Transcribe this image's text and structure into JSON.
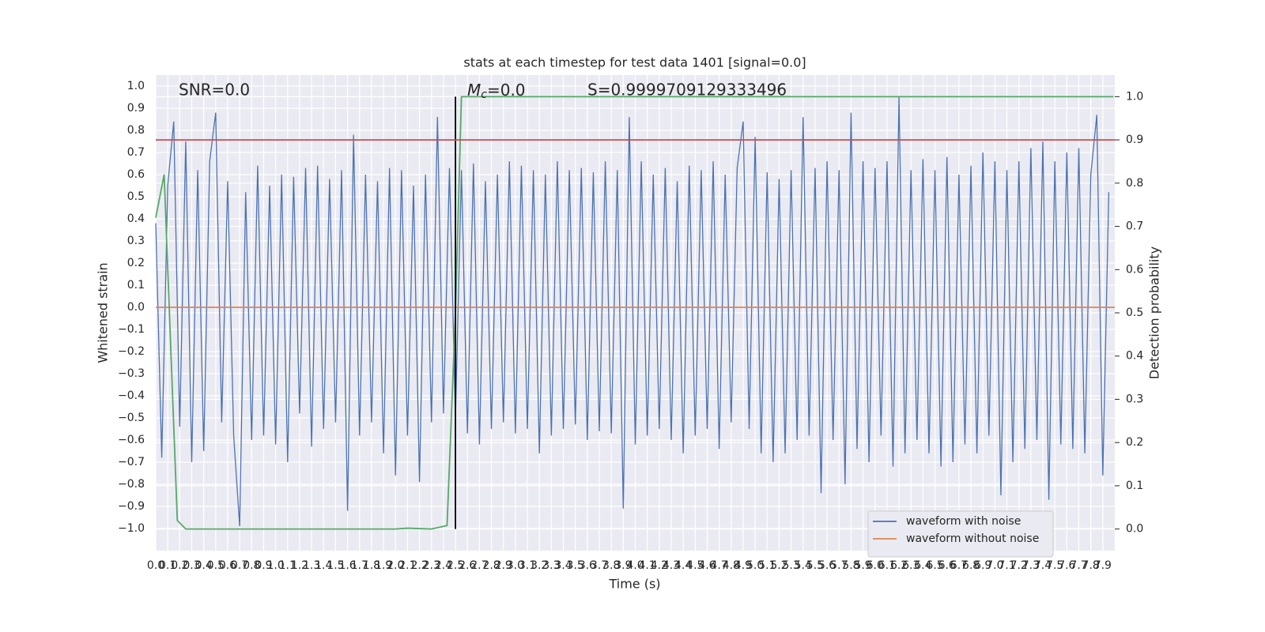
{
  "chart_data": {
    "type": "line",
    "title": "stats at each timestep for test data 1401 [signal=0.0]",
    "xlabel": "Time (s)",
    "ylabel": "Whitened strain",
    "y2label": "Detection probability",
    "annotations": {
      "snr": "SNR=0.0",
      "mc": {
        "symbol": "M",
        "subscript": "c",
        "text": "=0.0"
      },
      "s": "S=0.9999709129333496"
    },
    "xlim": [
      0,
      8
    ],
    "ylim": [
      -1.1,
      1.05
    ],
    "y2lim": [
      -0.05,
      1.05
    ],
    "grid": true,
    "legend": "lower right",
    "xticks": [
      {
        "value": 0,
        "label": "0.0"
      },
      0.1,
      0.2,
      0.3,
      0.4,
      0.5,
      0.6,
      0.7,
      0.8,
      0.9,
      {
        "value": 1,
        "label": "1.0"
      },
      1.1,
      1.2,
      1.3,
      1.4,
      1.5,
      1.6,
      1.7,
      1.8,
      1.9,
      {
        "value": 2,
        "label": "2.0"
      },
      2.1,
      2.2,
      2.3,
      2.4,
      2.5,
      2.6,
      2.7,
      2.8,
      2.9,
      {
        "value": 3,
        "label": "3.0"
      },
      3.1,
      3.2,
      3.3,
      3.4,
      3.5,
      3.6,
      3.7,
      3.8,
      3.9,
      {
        "value": 4,
        "label": "4.0"
      },
      4.1,
      4.2,
      4.3,
      4.4,
      4.5,
      4.6,
      4.7,
      4.8,
      4.9,
      {
        "value": 5,
        "label": "5.0"
      },
      5.1,
      5.2,
      5.3,
      5.4,
      5.5,
      5.6,
      5.7,
      5.8,
      5.9,
      {
        "value": 6,
        "label": "6.0"
      },
      6.1,
      6.2,
      6.3,
      6.4,
      6.5,
      6.6,
      6.7,
      6.8,
      6.9,
      {
        "value": 7,
        "label": "7.0"
      },
      7.1,
      7.2,
      7.3,
      7.4,
      7.5,
      7.6,
      7.7,
      7.8,
      7.9
    ],
    "yticks": [
      {
        "value": -1,
        "label": "−1.0"
      },
      {
        "value": -0.9,
        "label": "−0.9"
      },
      {
        "value": -0.8,
        "label": "−0.8"
      },
      {
        "value": -0.7,
        "label": "−0.7"
      },
      {
        "value": -0.6,
        "label": "−0.6"
      },
      {
        "value": -0.5,
        "label": "−0.5"
      },
      {
        "value": -0.4,
        "label": "−0.4"
      },
      {
        "value": -0.3,
        "label": "−0.3"
      },
      {
        "value": -0.2,
        "label": "−0.2"
      },
      {
        "value": -0.1,
        "label": "−0.1"
      },
      {
        "value": 0,
        "label": "0.0"
      },
      0.1,
      0.2,
      0.3,
      0.4,
      0.5,
      0.6,
      0.7,
      0.8,
      0.9,
      {
        "value": 1,
        "label": "1.0"
      }
    ],
    "y2ticks": [
      {
        "value": 0,
        "label": "0.0"
      },
      0.1,
      0.2,
      0.3,
      0.4,
      0.5,
      0.6,
      0.7,
      0.8,
      0.9,
      {
        "value": 1,
        "label": "1.0"
      }
    ],
    "series": [
      {
        "name": "waveform with noise",
        "color": "#4c72b0",
        "x": [
          0,
          0.05,
          0.1,
          0.15,
          0.2,
          0.25,
          0.3,
          0.35,
          0.4,
          0.45,
          0.5,
          0.55,
          0.6,
          0.65,
          0.7,
          0.75,
          0.8,
          0.85,
          0.9,
          0.95,
          1,
          1.05,
          1.1,
          1.15,
          1.2,
          1.25,
          1.3,
          1.35,
          1.4,
          1.45,
          1.5,
          1.55,
          1.6,
          1.65,
          1.7,
          1.75,
          1.8,
          1.85,
          1.9,
          1.95,
          2,
          2.05,
          2.1,
          2.15,
          2.2,
          2.25,
          2.3,
          2.35,
          2.4,
          2.45,
          2.5,
          2.55,
          2.6,
          2.65,
          2.7,
          2.75,
          2.8,
          2.85,
          2.9,
          2.95,
          3,
          3.05,
          3.1,
          3.15,
          3.2,
          3.25,
          3.3,
          3.35,
          3.4,
          3.45,
          3.5,
          3.55,
          3.6,
          3.65,
          3.7,
          3.75,
          3.8,
          3.85,
          3.9,
          3.95,
          4,
          4.05,
          4.1,
          4.15,
          4.2,
          4.25,
          4.3,
          4.35,
          4.4,
          4.45,
          4.5,
          4.55,
          4.6,
          4.65,
          4.7,
          4.75,
          4.8,
          4.85,
          4.9,
          4.95,
          5,
          5.05,
          5.1,
          5.15,
          5.2,
          5.25,
          5.3,
          5.35,
          5.4,
          5.45,
          5.5,
          5.55,
          5.6,
          5.65,
          5.7,
          5.75,
          5.8,
          5.85,
          5.9,
          5.95,
          6,
          6.05,
          6.1,
          6.15,
          6.2,
          6.25,
          6.3,
          6.35,
          6.4,
          6.45,
          6.5,
          6.55,
          6.6,
          6.65,
          6.7,
          6.75,
          6.8,
          6.85,
          6.9,
          6.95,
          7,
          7.05,
          7.1,
          7.15,
          7.2,
          7.25,
          7.3,
          7.35,
          7.4,
          7.45,
          7.5,
          7.55,
          7.6,
          7.65,
          7.7,
          7.75,
          7.8,
          7.85,
          7.9,
          7.95
        ],
        "values": [
          0.38,
          -0.68,
          0.55,
          0.84,
          -0.54,
          0.75,
          -0.7,
          0.62,
          -0.65,
          0.66,
          0.88,
          -0.52,
          0.57,
          -0.58,
          -0.99,
          0.52,
          -0.6,
          0.64,
          -0.58,
          0.55,
          -0.62,
          0.6,
          -0.7,
          0.59,
          -0.48,
          0.63,
          -0.63,
          0.64,
          -0.55,
          0.58,
          -0.52,
          0.62,
          -0.92,
          0.78,
          -0.58,
          0.6,
          -0.52,
          0.57,
          -0.66,
          0.63,
          -0.76,
          0.62,
          -0.58,
          0.55,
          -0.79,
          0.6,
          -0.52,
          0.86,
          -0.48,
          0.63,
          -0.5,
          0.62,
          -0.57,
          0.65,
          -0.62,
          0.57,
          -0.55,
          0.6,
          -0.52,
          0.66,
          -0.57,
          0.64,
          -0.55,
          0.62,
          -0.66,
          0.6,
          -0.58,
          0.66,
          -0.55,
          0.62,
          -0.53,
          0.63,
          -0.6,
          0.61,
          -0.56,
          0.66,
          -0.57,
          0.62,
          -0.91,
          0.86,
          -0.62,
          0.66,
          -0.58,
          0.6,
          -0.55,
          0.63,
          -0.6,
          0.57,
          -0.66,
          0.64,
          -0.58,
          0.62,
          -0.55,
          0.66,
          -0.64,
          0.6,
          -0.52,
          0.63,
          0.84,
          -0.55,
          0.77,
          -0.66,
          0.61,
          -0.7,
          0.58,
          -0.66,
          0.62,
          -0.6,
          0.86,
          -0.58,
          0.63,
          -0.84,
          0.66,
          -0.6,
          0.62,
          -0.8,
          0.88,
          -0.64,
          0.66,
          -0.7,
          0.63,
          -0.58,
          0.66,
          -0.72,
          0.95,
          -0.66,
          0.62,
          -0.6,
          0.67,
          -0.66,
          0.62,
          -0.72,
          0.68,
          -0.7,
          0.6,
          -0.62,
          0.64,
          -0.66,
          0.7,
          -0.58,
          0.66,
          -0.85,
          0.62,
          -0.7,
          0.66,
          -0.64,
          0.72,
          -0.6,
          0.75,
          -0.87,
          0.66,
          -0.62,
          0.7,
          -0.64,
          0.72,
          -0.66,
          0.6,
          0.87,
          -0.76,
          0.52
        ]
      },
      {
        "name": "waveform without noise",
        "color": "#dd8452",
        "x": [
          0,
          8
        ],
        "values": [
          0,
          0
        ]
      },
      {
        "color": "#55a868",
        "axis": "y2",
        "x": [
          0,
          0.07,
          0.18,
          0.25,
          0.5,
          1.0,
          1.5,
          2.0,
          2.1,
          2.3,
          2.43,
          2.5,
          2.55,
          3.0,
          7.99
        ],
        "values": [
          0.72,
          0.82,
          0.02,
          0.0,
          0.0,
          0.0,
          0.0,
          0.0,
          0.002,
          0.0,
          0.008,
          0.5,
          1.0,
          1.0,
          1.0
        ]
      }
    ],
    "threshold": {
      "value": 0.9,
      "axis": "y2",
      "color": "#c44e52"
    },
    "marker": {
      "x": 2.5,
      "y2": [
        0,
        1
      ],
      "color": "#000000"
    }
  }
}
